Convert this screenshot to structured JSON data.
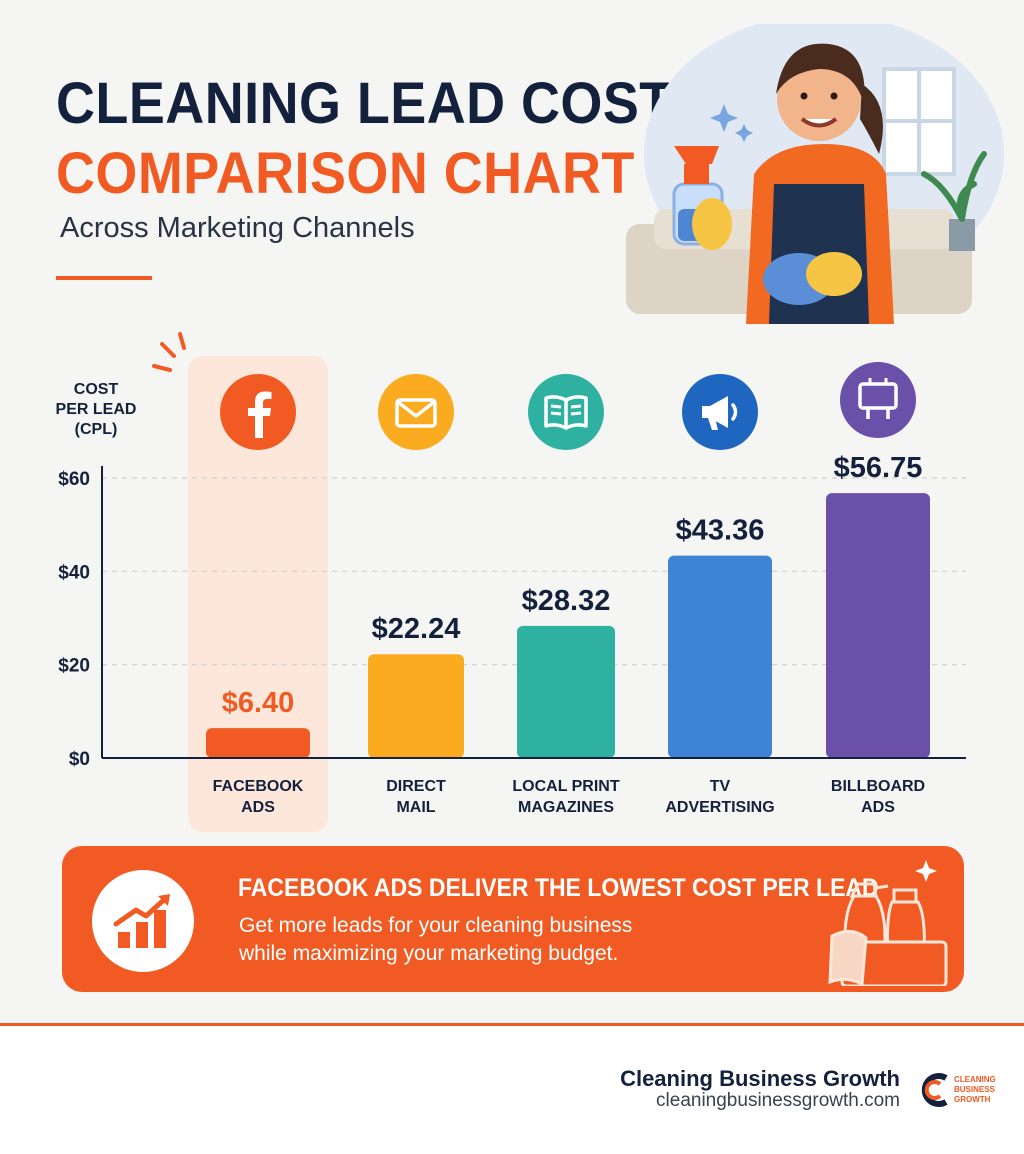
{
  "header": {
    "title_line1": "CLEANING LEAD COST",
    "title_line2": "COMPARISON CHART",
    "subtitle": "Across Marketing Channels"
  },
  "colors": {
    "navy": "#14213d",
    "accent_orange": "#f15a22",
    "highlight_bg": "#fde7da"
  },
  "chart_data": {
    "type": "bar",
    "ylabel_lines": [
      "COST",
      "PER LEAD",
      "(CPL)"
    ],
    "ylim": [
      0,
      60
    ],
    "yticks": [
      0,
      20,
      40,
      60
    ],
    "ytick_labels": [
      "$0",
      "$20",
      "$40",
      "$60"
    ],
    "grid": true,
    "categories": [
      [
        "FACEBOOK",
        "ADS"
      ],
      [
        "DIRECT",
        "MAIL"
      ],
      [
        "LOCAL PRINT",
        "MAGAZINES"
      ],
      [
        "TV",
        "ADVERTISING"
      ],
      [
        "BILLBOARD",
        "ADS"
      ]
    ],
    "values": [
      6.4,
      22.24,
      28.32,
      43.36,
      56.75
    ],
    "value_labels": [
      "$6.40",
      "$22.24",
      "$28.32",
      "$43.36",
      "$56.75"
    ],
    "bar_colors": [
      "#f15a22",
      "#fbab1f",
      "#2fb1a2",
      "#3d85d4",
      "#6a50a8"
    ],
    "label_colors": [
      "#f15a22",
      "#14213d",
      "#14213d",
      "#14213d",
      "#14213d"
    ],
    "icons": [
      "facebook-icon",
      "envelope-icon",
      "open-book-icon",
      "megaphone-icon",
      "billboard-icon"
    ],
    "highlighted_category": "FACEBOOK ADS"
  },
  "banner": {
    "title": "FACEBOOK ADS DELIVER THE LOWEST COST PER LEAD",
    "line1": "Get more leads for your cleaning business",
    "line2": "while maximizing your marketing budget."
  },
  "footer": {
    "brand_name": "Cleaning Business Growth",
    "brand_url": "cleaningbusinessgrowth.com",
    "logo_text": [
      "CLEANING",
      "BUSINESS",
      "GROWTH"
    ]
  }
}
